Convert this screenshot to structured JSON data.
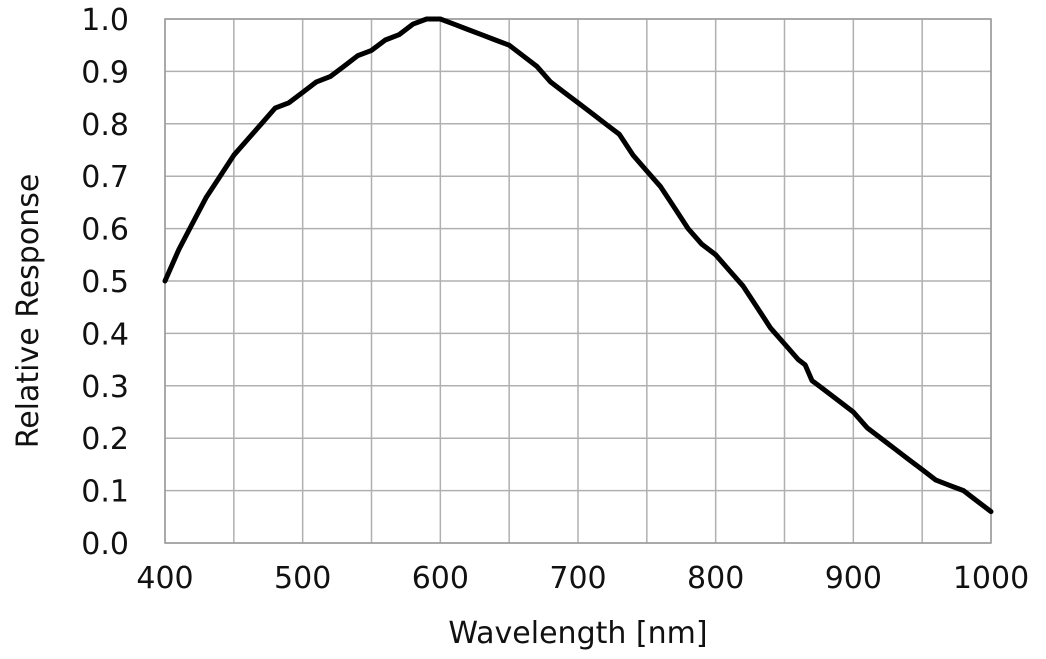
{
  "chart_data": {
    "type": "line",
    "title": "",
    "xlabel": "Wavelength [nm]",
    "ylabel": "Relative Response",
    "xlim": [
      400,
      1000
    ],
    "ylim": [
      0.0,
      1.0
    ],
    "grid": true,
    "x_ticks": [
      400,
      450,
      500,
      550,
      600,
      650,
      700,
      750,
      800,
      850,
      900,
      950,
      1000
    ],
    "x_tick_labels": [
      "400",
      "",
      "500",
      "",
      "600",
      "",
      "700",
      "",
      "800",
      "",
      "900",
      "",
      "1000"
    ],
    "y_ticks": [
      0.0,
      0.1,
      0.2,
      0.3,
      0.4,
      0.5,
      0.6,
      0.7,
      0.8,
      0.9,
      1.0
    ],
    "y_tick_labels": [
      "0.0",
      "0.1",
      "0.2",
      "0.3",
      "0.4",
      "0.5",
      "0.6",
      "0.7",
      "0.8",
      "0.9",
      "1.0"
    ],
    "series": [
      {
        "color": "#000000",
        "x": [
          400,
          410,
          420,
          430,
          440,
          450,
          460,
          470,
          480,
          490,
          500,
          510,
          520,
          530,
          540,
          550,
          560,
          570,
          580,
          590,
          600,
          610,
          620,
          630,
          640,
          650,
          660,
          670,
          680,
          690,
          700,
          710,
          720,
          730,
          740,
          750,
          760,
          770,
          780,
          790,
          800,
          810,
          820,
          830,
          840,
          850,
          860,
          865,
          870,
          875,
          880,
          890,
          900,
          910,
          920,
          930,
          940,
          950,
          960,
          970,
          980,
          990,
          1000
        ],
        "values": [
          0.5,
          0.56,
          0.61,
          0.66,
          0.7,
          0.74,
          0.77,
          0.8,
          0.83,
          0.84,
          0.86,
          0.88,
          0.89,
          0.91,
          0.93,
          0.94,
          0.96,
          0.97,
          0.99,
          1.0,
          1.0,
          0.99,
          0.98,
          0.97,
          0.96,
          0.95,
          0.93,
          0.91,
          0.88,
          0.86,
          0.84,
          0.82,
          0.8,
          0.78,
          0.74,
          0.71,
          0.68,
          0.64,
          0.6,
          0.57,
          0.55,
          0.52,
          0.49,
          0.45,
          0.41,
          0.38,
          0.35,
          0.34,
          0.31,
          0.3,
          0.29,
          0.27,
          0.25,
          0.22,
          0.2,
          0.18,
          0.16,
          0.14,
          0.12,
          0.11,
          0.1,
          0.08,
          0.06
        ]
      }
    ]
  }
}
